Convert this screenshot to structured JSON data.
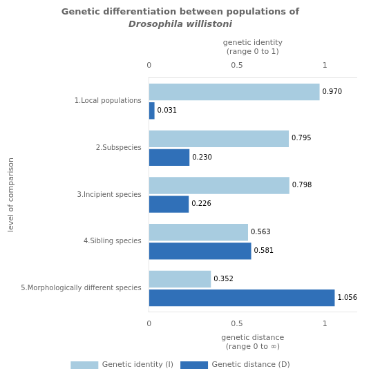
{
  "chart_data": {
    "type": "bar",
    "orientation": "horizontal",
    "title": "Genetic differentiation between populations of",
    "subtitle": "Drosophila willistoni",
    "categories": [
      "1.Local populations",
      "2.Subspecies",
      "3.Incipient species",
      "4.Sibling species",
      "5.Morphologically different species"
    ],
    "series": [
      {
        "name": "Genetic identity (I)",
        "color": "#a8cce0",
        "axis": "x2",
        "values": [
          0.97,
          0.795,
          0.798,
          0.563,
          0.352
        ],
        "value_labels": [
          "0.970",
          "0.795",
          "0.798",
          "0.563",
          "0.352"
        ]
      },
      {
        "name": "Genetic distance (D)",
        "color": "#3070b8",
        "values": [
          0.031,
          0.23,
          0.226,
          0.581,
          1.056
        ],
        "value_labels": [
          "0.031",
          "0.230",
          "0.226",
          "0.581",
          "1.056"
        ]
      }
    ],
    "xlabel": "genetic distance\n(range 0 to ∞)",
    "x2label": "genetic identity\n(range 0 to 1)",
    "ylabel": "level of comparison",
    "xlim": [
      0,
      1.18
    ],
    "xticks": [
      0,
      0.5,
      1
    ],
    "x2lim": [
      0,
      1.18
    ],
    "x2ticks": [
      0,
      0.5,
      1
    ],
    "grid": false,
    "legend": "bottom",
    "data_labels": true
  }
}
